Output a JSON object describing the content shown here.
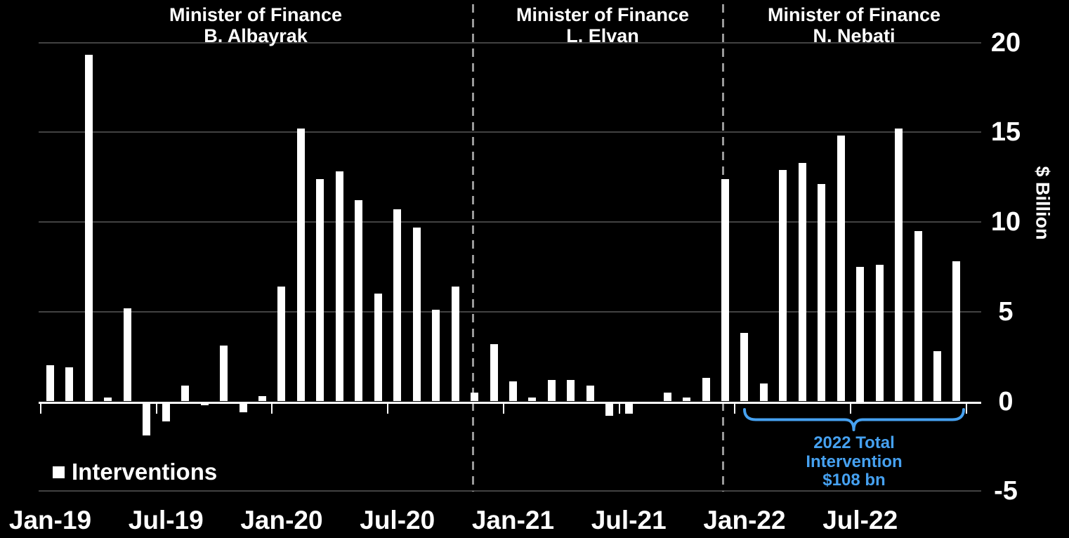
{
  "window": {
    "background": "#000000"
  },
  "chart_data": {
    "type": "bar",
    "series_name": "Interventions",
    "title": "",
    "ylabel": "$ Billion",
    "months": [
      "Jan-19",
      "Feb-19",
      "Mar-19",
      "Apr-19",
      "May-19",
      "Jun-19",
      "Jul-19",
      "Aug-19",
      "Sep-19",
      "Oct-19",
      "Nov-19",
      "Dec-19",
      "Jan-20",
      "Feb-20",
      "Mar-20",
      "Apr-20",
      "May-20",
      "Jun-20",
      "Jul-20",
      "Aug-20",
      "Sep-20",
      "Oct-20",
      "Nov-20",
      "Dec-20",
      "Jan-21",
      "Feb-21",
      "Mar-21",
      "Apr-21",
      "May-21",
      "Jun-21",
      "Jul-21",
      "Aug-21",
      "Sep-21",
      "Oct-21",
      "Nov-21",
      "Dec-21",
      "Jan-22",
      "Feb-22",
      "Mar-22",
      "Apr-22",
      "May-22",
      "Jun-22",
      "Jul-22",
      "Aug-22",
      "Sep-22",
      "Oct-22",
      "Nov-22",
      "Dec-22"
    ],
    "values": [
      2.0,
      1.9,
      19.3,
      0.2,
      5.2,
      -1.9,
      -1.1,
      0.9,
      -0.2,
      3.1,
      -0.6,
      0.3,
      6.4,
      15.2,
      12.4,
      12.8,
      11.2,
      6.0,
      10.7,
      9.7,
      5.1,
      6.4,
      0.5,
      3.2,
      1.1,
      0.2,
      1.2,
      1.2,
      0.9,
      -0.8,
      -0.7,
      -0.15,
      0.5,
      0.2,
      1.3,
      12.4,
      3.8,
      1.0,
      12.9,
      13.3,
      12.1,
      14.8,
      7.5,
      7.6,
      15.2,
      9.5,
      2.8,
      7.8
    ],
    "x_axis": {
      "tick_labels": [
        "Jan-19",
        "Jul-19",
        "Jan-20",
        "Jul-20",
        "Jan-21",
        "Jul-21",
        "Jan-22",
        "Jul-22"
      ]
    },
    "y_axis": {
      "label": "$ Billion",
      "ticks": [
        20,
        15,
        10,
        5,
        0,
        -5
      ],
      "gridline_values": [
        20,
        15,
        10,
        5,
        -5
      ],
      "range": [
        -5,
        20
      ]
    },
    "legend": {
      "label": "Interventions",
      "marker_color": "#FFFFFF"
    },
    "ministers": [
      {
        "title": "Minister of Finance",
        "name": "B. Albayrak"
      },
      {
        "title": "Minister of Finance",
        "name": "L. Elvan"
      },
      {
        "title": "Minister of Finance",
        "name": "N. Nebati"
      }
    ],
    "dividers": {
      "months": [
        "Nov-20",
        "Dec-21"
      ],
      "style": "dashed",
      "color": "#999999"
    },
    "annotation": {
      "lines": [
        "2022 Total",
        "Intervention",
        "$108 bn"
      ],
      "color": "#46A1F0",
      "bracket_months": [
        "Jan-22",
        "Dec-22"
      ]
    },
    "colors": {
      "background": "#000000",
      "bar": "#FFFFFF",
      "gridline": "#424242",
      "text": "#FFFFFF"
    }
  }
}
